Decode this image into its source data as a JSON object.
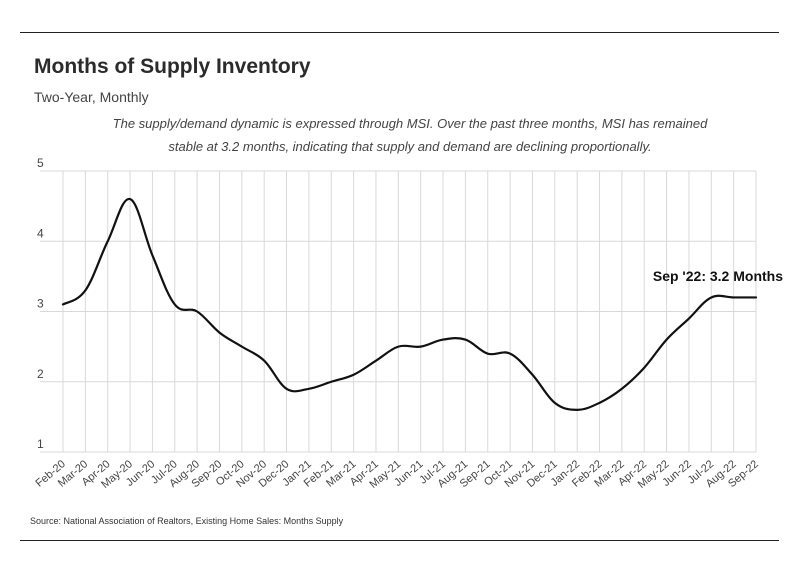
{
  "chart_data": {
    "type": "line",
    "title": "Months of Supply Inventory",
    "subtitle": "Two-Year, Monthly",
    "note_lines": [
      "The supply/demand dynamic is expressed through MSI. Over the past three months, MSI has remained",
      "stable at 3.2 months, indicating that supply and demand are declining proportionally."
    ],
    "source": "Source:  National Association of Realtors, Existing Home Sales: Months Supply",
    "annotation": "Sep '22: 3.2 Months",
    "ylim": [
      1,
      5
    ],
    "yticks": [
      "1",
      "2",
      "3",
      "4",
      "5"
    ],
    "grid": true,
    "categories": [
      "Feb-20",
      "Mar-20",
      "Apr-20",
      "May-20",
      "Jun-20",
      "Jul-20",
      "Aug-20",
      "Sep-20",
      "Oct-20",
      "Nov-20",
      "Dec-20",
      "Jan-21",
      "Feb-21",
      "Mar-21",
      "Apr-21",
      "May-21",
      "Jun-21",
      "Jul-21",
      "Aug-21",
      "Sep-21",
      "Oct-21",
      "Nov-21",
      "Dec-21",
      "Jan-22",
      "Feb-22",
      "Mar-22",
      "Apr-22",
      "May-22",
      "Jun-22",
      "Jul-22",
      "Aug-22",
      "Sep-22"
    ],
    "series": [
      {
        "values": [
          3.1,
          3.3,
          4.0,
          4.6,
          3.8,
          3.1,
          3.0,
          2.7,
          2.5,
          2.3,
          1.9,
          1.9,
          2.0,
          2.1,
          2.3,
          2.5,
          2.5,
          2.6,
          2.6,
          2.4,
          2.4,
          2.1,
          1.7,
          1.6,
          1.7,
          1.9,
          2.2,
          2.6,
          2.9,
          3.2,
          3.2,
          3.2
        ],
        "color": "#111111"
      }
    ]
  }
}
